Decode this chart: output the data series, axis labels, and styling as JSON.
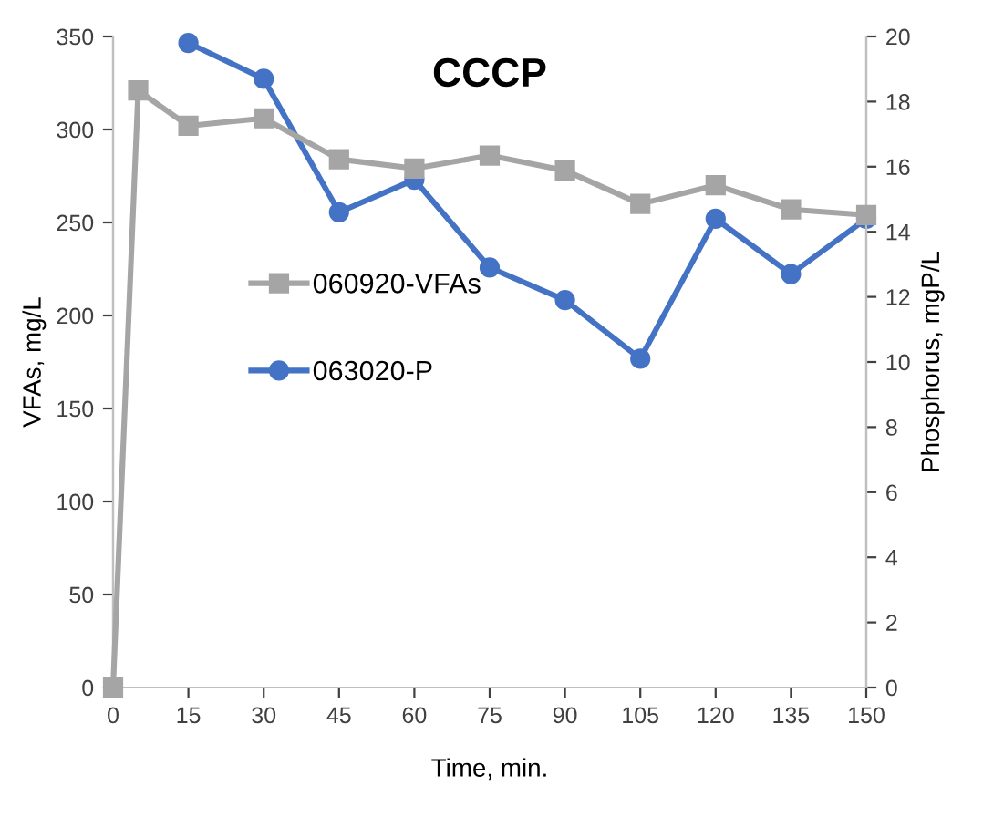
{
  "chart_data": {
    "type": "line",
    "title": "CCCP",
    "xlabel": "Time, min.",
    "ylabel": "VFAs, mg/L",
    "y2label": "Phosphorus, mgP/L",
    "xlim": [
      0,
      150
    ],
    "xticks": [
      0,
      15,
      30,
      45,
      60,
      75,
      90,
      105,
      120,
      135,
      150
    ],
    "ylim": [
      0,
      350
    ],
    "yticks": [
      0,
      50,
      100,
      150,
      200,
      250,
      300,
      350
    ],
    "y2lim": [
      0,
      20
    ],
    "y2ticks": [
      0,
      2,
      4,
      6,
      8,
      10,
      12,
      14,
      16,
      18,
      20
    ],
    "grid": false,
    "legend": "left",
    "line_style": "solid",
    "series": [
      {
        "name": "060920-VFAs",
        "color": "#a5a5a5",
        "marker": "square",
        "x": [
          0,
          5,
          15,
          30,
          45,
          60,
          75,
          90,
          105,
          120,
          135,
          150
        ],
        "values": [
          0,
          321,
          302,
          306,
          284,
          279,
          286,
          278,
          260,
          270,
          257,
          254
        ]
      },
      {
        "name": "063020-P",
        "color": "#4472c4",
        "marker": "circle",
        "axis": "y2",
        "x": [
          15,
          30,
          45,
          60,
          75,
          90,
          105,
          120,
          135,
          150
        ],
        "values": [
          19.8,
          18.7,
          14.6,
          15.6,
          12.9,
          11.9,
          10.1,
          14.4,
          12.7,
          14.4
        ]
      }
    ]
  }
}
